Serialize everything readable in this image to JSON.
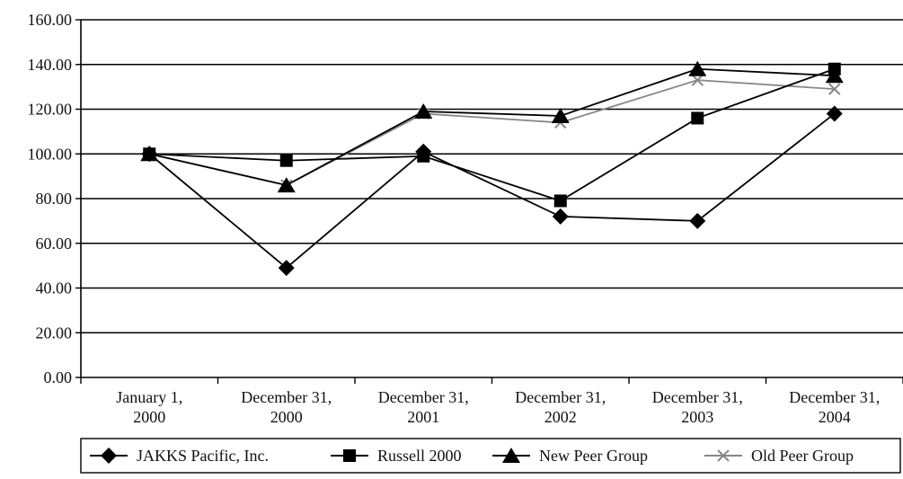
{
  "chart_data": {
    "type": "line",
    "title": "",
    "xlabel": "",
    "ylabel": "",
    "categories": [
      [
        "January 1,",
        "2000"
      ],
      [
        "December 31,",
        "2000"
      ],
      [
        "December 31,",
        "2001"
      ],
      [
        "December 31,",
        "2002"
      ],
      [
        "December 31,",
        "2003"
      ],
      [
        "December 31,",
        "2004"
      ]
    ],
    "ylim": [
      0,
      160
    ],
    "yticks": [
      "0.00",
      "20.00",
      "40.00",
      "60.00",
      "80.00",
      "100.00",
      "120.00",
      "140.00",
      "160.00"
    ],
    "grid": true,
    "legend_position": "bottom",
    "series": [
      {
        "name": "JAKKS Pacific, Inc.",
        "marker": "diamond",
        "color": "#000000",
        "values": [
          100,
          49,
          101,
          72,
          70,
          118
        ]
      },
      {
        "name": "Russell 2000",
        "marker": "square",
        "color": "#000000",
        "values": [
          100,
          97,
          99,
          79,
          116,
          138
        ]
      },
      {
        "name": "New Peer Group",
        "marker": "triangle",
        "color": "#000000",
        "values": [
          100,
          86,
          119,
          117,
          138,
          135
        ]
      },
      {
        "name": "Old Peer Group",
        "marker": "x",
        "color": "#888888",
        "values": [
          100,
          86,
          118,
          114,
          133,
          129
        ]
      }
    ]
  }
}
